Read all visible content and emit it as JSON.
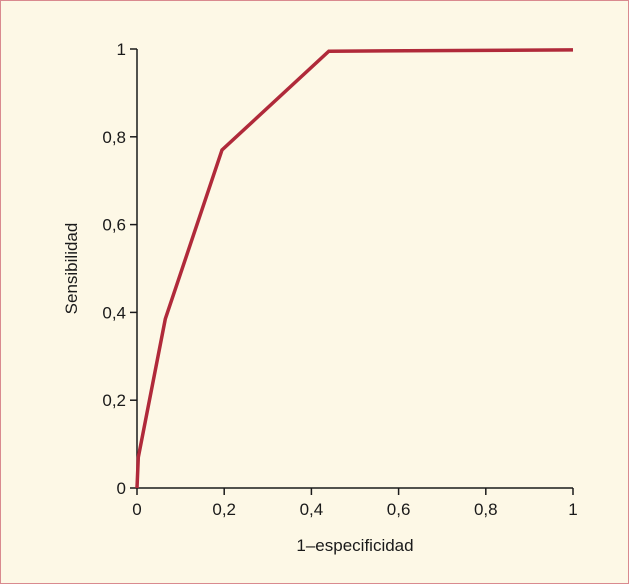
{
  "chart_data": {
    "type": "line",
    "title": "",
    "xlabel": "1–especificidad",
    "ylabel": "Sensibilidad",
    "xlim": [
      0,
      1
    ],
    "ylim": [
      0,
      1
    ],
    "x_ticks": [
      0,
      0.2,
      0.4,
      0.6,
      0.8,
      1
    ],
    "y_ticks": [
      0,
      0.2,
      0.4,
      0.6,
      0.8,
      1
    ],
    "x_tick_labels": [
      "0",
      "0,2",
      "0,4",
      "0,6",
      "0,8",
      "1"
    ],
    "y_tick_labels": [
      "0",
      "0,2",
      "0,4",
      "0,6",
      "0,8",
      "1"
    ],
    "grid": false,
    "series": [
      {
        "color": "#b02a3a",
        "x": [
          0,
          0.003,
          0.065,
          0.195,
          0.44,
          1
        ],
        "y": [
          0,
          0.07,
          0.385,
          0.77,
          0.995,
          0.998
        ]
      }
    ]
  },
  "colors": {
    "background": "#fdf8e6",
    "border": "#d98a8f",
    "axis": "#1a1a1a",
    "line": "#b02a3a"
  }
}
